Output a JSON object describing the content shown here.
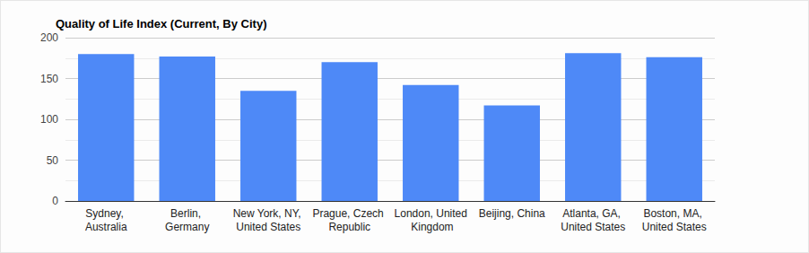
{
  "chart_data": {
    "type": "bar",
    "title": "Quality of Life Index (Current, By City)",
    "categories": [
      "Sydney, Australia",
      "Berlin, Germany",
      "New York, NY, United States",
      "Prague, Czech Republic",
      "London, United Kingdom",
      "Beijing, China",
      "Atlanta, GA, United States",
      "Boston, MA, United States"
    ],
    "values": [
      180,
      177,
      135,
      170,
      142,
      117,
      181,
      176
    ],
    "color": "#4e89f7",
    "ylim": [
      0,
      200
    ],
    "yticks": [
      0,
      50,
      100,
      150,
      200
    ],
    "grid": true
  }
}
